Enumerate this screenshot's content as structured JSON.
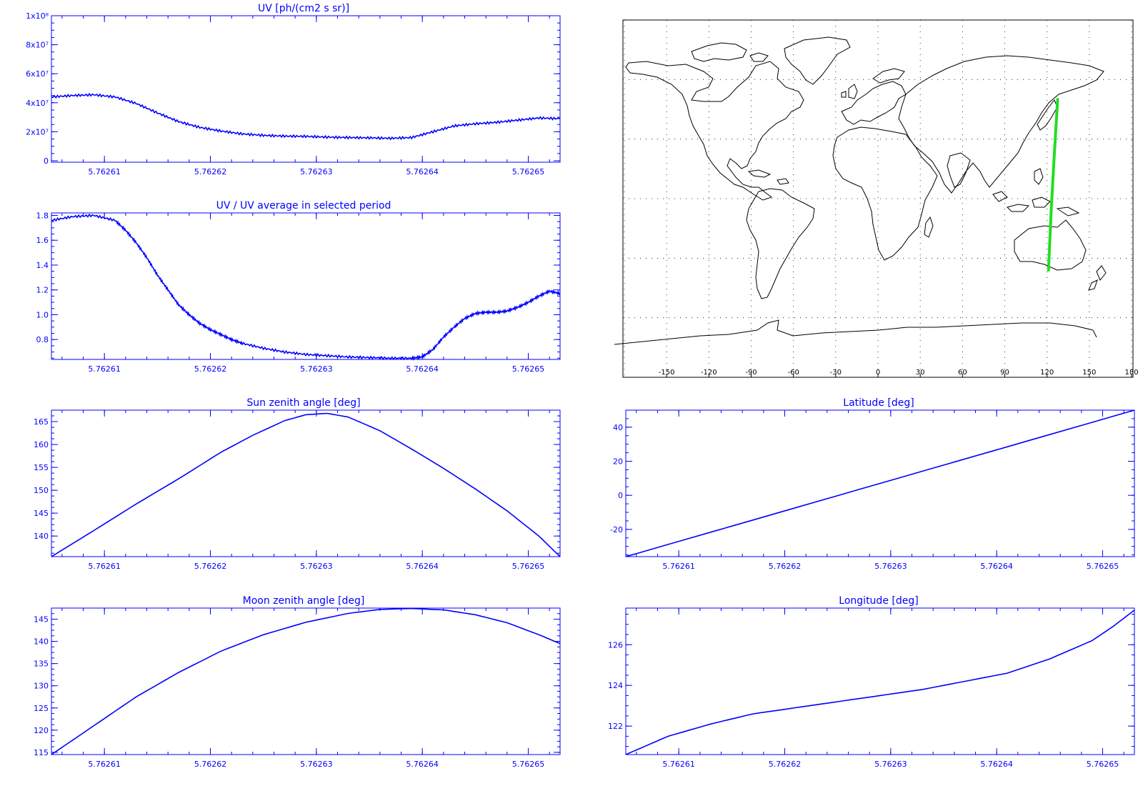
{
  "chart_data": [
    {
      "id": "uv",
      "type": "line",
      "title": "UV [ph/(cm2 s sr)]",
      "xlim": [
        5.762605,
        5.762653
      ],
      "xticks": [
        5.76261,
        5.76262,
        5.76263,
        5.76264,
        5.76265
      ],
      "xtick_labels": [
        "5.76261",
        "5.76262",
        "5.76263",
        "5.76264",
        "5.76265"
      ],
      "ylim": [
        -1000000,
        100000000
      ],
      "yticks": [
        0,
        20000000,
        40000000,
        60000000,
        80000000,
        100000000
      ],
      "ytick_labels": [
        "0",
        "2x10⁷",
        "4x10⁷",
        "6x10⁷",
        "8x10⁷",
        "1x10⁸"
      ],
      "series": [
        {
          "x": [
            5.762605,
            5.762607,
            5.762609,
            5.762611,
            5.762613,
            5.762615,
            5.762617,
            5.762619,
            5.762621,
            5.762623,
            5.762625,
            5.762627,
            5.762629,
            5.762631,
            5.762633,
            5.762635,
            5.762637,
            5.762639,
            5.762641,
            5.762643,
            5.762645,
            5.762647,
            5.762649,
            5.762651,
            5.762653
          ],
          "y": [
            44000000,
            45000000,
            45500000,
            44000000,
            39500000,
            33000000,
            27000000,
            23000000,
            20500000,
            18500000,
            17500000,
            17000000,
            16800000,
            16300000,
            16000000,
            15800000,
            15500000,
            16000000,
            20000000,
            24000000,
            25500000,
            26500000,
            28000000,
            29500000,
            29000000
          ]
        }
      ]
    },
    {
      "id": "ratio",
      "type": "line",
      "title": "UV / UV average in selected period",
      "xlim": [
        5.762605,
        5.762653
      ],
      "xticks": [
        5.76261,
        5.76262,
        5.76263,
        5.76264,
        5.76265
      ],
      "xtick_labels": [
        "5.76261",
        "5.76262",
        "5.76263",
        "5.76264",
        "5.76265"
      ],
      "ylim": [
        0.64,
        1.82
      ],
      "yticks": [
        0.8,
        1.0,
        1.2,
        1.4,
        1.6,
        1.8
      ],
      "ytick_labels": [
        "0.8",
        "1.0",
        "1.2",
        "1.4",
        "1.6",
        "1.8"
      ],
      "series": [
        {
          "x": [
            5.762605,
            5.762607,
            5.762609,
            5.762611,
            5.762612,
            5.762613,
            5.762614,
            5.762615,
            5.762616,
            5.762617,
            5.762618,
            5.762619,
            5.76262,
            5.762621,
            5.762622,
            5.762623,
            5.762625,
            5.762627,
            5.762629,
            5.762631,
            5.762633,
            5.762635,
            5.762637,
            5.762639,
            5.76264,
            5.762641,
            5.762642,
            5.762643,
            5.762644,
            5.762645,
            5.762646,
            5.762647,
            5.762648,
            5.762649,
            5.76265,
            5.762651,
            5.762652,
            5.762653
          ],
          "y": [
            1.76,
            1.79,
            1.8,
            1.76,
            1.68,
            1.58,
            1.46,
            1.32,
            1.2,
            1.08,
            1.0,
            0.93,
            0.88,
            0.84,
            0.8,
            0.77,
            0.73,
            0.7,
            0.68,
            0.67,
            0.66,
            0.655,
            0.65,
            0.65,
            0.66,
            0.72,
            0.82,
            0.9,
            0.97,
            1.01,
            1.02,
            1.02,
            1.03,
            1.06,
            1.1,
            1.15,
            1.19,
            1.17
          ]
        }
      ]
    },
    {
      "id": "sun",
      "type": "line",
      "title": "Sun zenith angle [deg]",
      "xlim": [
        5.762605,
        5.762653
      ],
      "xticks": [
        5.76261,
        5.76262,
        5.76263,
        5.76264,
        5.76265
      ],
      "xtick_labels": [
        "5.76261",
        "5.76262",
        "5.76263",
        "5.76264",
        "5.76265"
      ],
      "ylim": [
        135.5,
        167.5
      ],
      "yticks": [
        140,
        145,
        150,
        155,
        160,
        165
      ],
      "ytick_labels": [
        "140",
        "145",
        "150",
        "155",
        "160",
        "165"
      ],
      "series": [
        {
          "x": [
            5.762605,
            5.762609,
            5.762613,
            5.762617,
            5.762621,
            5.762624,
            5.762627,
            5.762629,
            5.762631,
            5.762633,
            5.762636,
            5.762639,
            5.762642,
            5.762645,
            5.762648,
            5.762651,
            5.762653
          ],
          "y": [
            135.5,
            141.2,
            147.0,
            152.5,
            158.3,
            162.0,
            165.2,
            166.5,
            166.8,
            166.0,
            163.0,
            159.0,
            154.8,
            150.3,
            145.5,
            140.0,
            135.5
          ]
        }
      ]
    },
    {
      "id": "moon",
      "type": "line",
      "title": "Moon zenith angle [deg]",
      "xlim": [
        5.762605,
        5.762653
      ],
      "xticks": [
        5.76261,
        5.76262,
        5.76263,
        5.76264,
        5.76265
      ],
      "xtick_labels": [
        "5.76261",
        "5.76262",
        "5.76263",
        "5.76264",
        "5.76265"
      ],
      "ylim": [
        114.5,
        147.5
      ],
      "yticks": [
        115,
        120,
        125,
        130,
        135,
        140,
        145
      ],
      "ytick_labels": [
        "115",
        "120",
        "125",
        "130",
        "135",
        "140",
        "145"
      ],
      "series": [
        {
          "x": [
            5.762605,
            5.762609,
            5.762613,
            5.762617,
            5.762621,
            5.762625,
            5.762629,
            5.762633,
            5.762636,
            5.762639,
            5.762642,
            5.762645,
            5.762648,
            5.762651,
            5.762653
          ],
          "y": [
            114.5,
            121.0,
            127.5,
            133.0,
            137.8,
            141.5,
            144.3,
            146.3,
            147.2,
            147.4,
            147.1,
            146.0,
            144.2,
            141.5,
            139.5
          ]
        }
      ]
    },
    {
      "id": "lat",
      "type": "line",
      "title": "Latitude [deg]",
      "xlim": [
        5.762605,
        5.762653
      ],
      "xticks": [
        5.76261,
        5.76262,
        5.76263,
        5.76264,
        5.76265
      ],
      "xtick_labels": [
        "5.76261",
        "5.76262",
        "5.76263",
        "5.76264",
        "5.76265"
      ],
      "ylim": [
        -36,
        50
      ],
      "yticks": [
        -20,
        0,
        20,
        40
      ],
      "ytick_labels": [
        "-20",
        "0",
        "20",
        "40"
      ],
      "series": [
        {
          "x": [
            5.762605,
            5.762617,
            5.762629,
            5.762641,
            5.762653
          ],
          "y": [
            -36,
            -14.5,
            7,
            28.5,
            50
          ]
        }
      ]
    },
    {
      "id": "lon",
      "type": "line",
      "title": "Longitude [deg]",
      "xlim": [
        5.762605,
        5.762653
      ],
      "xticks": [
        5.76261,
        5.76262,
        5.76263,
        5.76264,
        5.76265
      ],
      "xtick_labels": [
        "5.76261",
        "5.76262",
        "5.76263",
        "5.76264",
        "5.76265"
      ],
      "ylim": [
        120.6,
        127.8
      ],
      "yticks": [
        122,
        124,
        126
      ],
      "ytick_labels": [
        "122",
        "124",
        "126"
      ],
      "series": [
        {
          "x": [
            5.762605,
            5.762609,
            5.762613,
            5.762617,
            5.762621,
            5.762625,
            5.762629,
            5.762633,
            5.762637,
            5.762641,
            5.762645,
            5.762649,
            5.762651,
            5.762653
          ],
          "y": [
            120.6,
            121.5,
            122.1,
            122.6,
            122.9,
            123.2,
            123.5,
            123.8,
            124.2,
            124.6,
            125.3,
            126.2,
            126.9,
            127.7
          ]
        }
      ]
    }
  ],
  "map": {
    "xtick_values": [
      -150,
      -120,
      -90,
      -60,
      -30,
      0,
      30,
      60,
      90,
      120,
      150,
      180
    ],
    "xtick_labels": [
      "-150",
      "-120",
      "-90",
      "-60",
      "-30",
      "0",
      "30",
      "60",
      "90",
      "120",
      "150",
      "180"
    ],
    "track": {
      "lon": [
        121,
        123,
        125,
        127.5
      ],
      "lat": [
        -36,
        -5,
        20,
        50
      ],
      "color": "#22dd22"
    },
    "line_color": "#000000"
  },
  "colors": {
    "axis": "#0000ff",
    "series": "#0000ff",
    "background": "#ffffff"
  }
}
